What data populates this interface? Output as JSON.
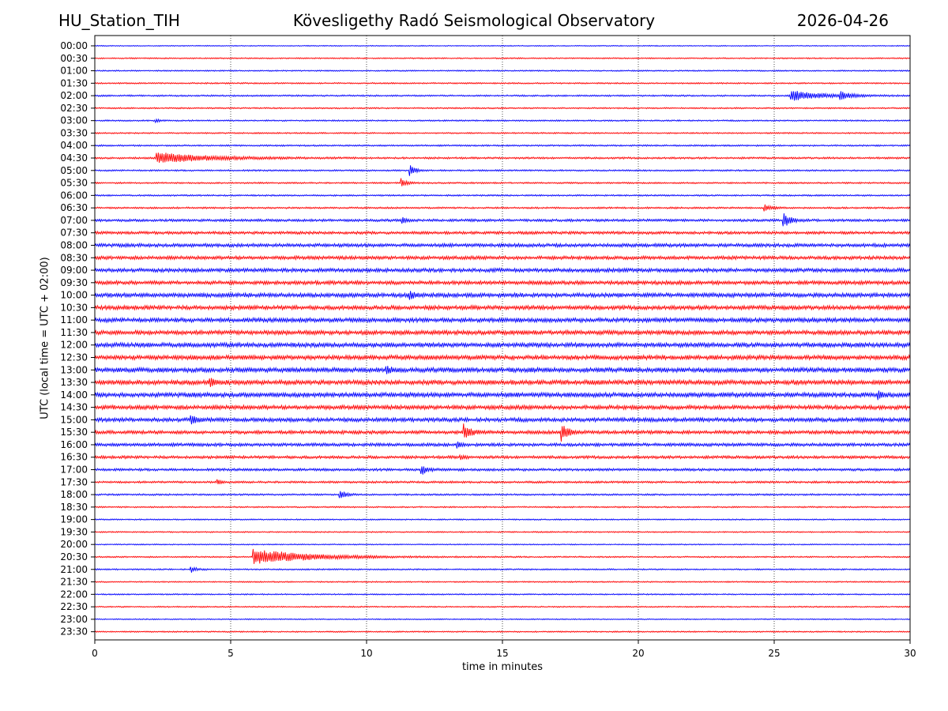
{
  "header": {
    "station": "HU_Station_TIH",
    "title": "Kövesligethy Radó Seismological Observatory",
    "date": "2026-04-26"
  },
  "chart_data": {
    "type": "line",
    "subtype": "helicorder",
    "title": "Kövesligethy Radó Seismological Observatory",
    "xlabel": "time in minutes",
    "ylabel": "UTC (local time = UTC + 02:00)",
    "xlim": [
      0,
      30
    ],
    "x_ticks": [
      "0",
      "5",
      "10",
      "15",
      "20",
      "25",
      "30"
    ],
    "x_tick_values": [
      0,
      5,
      10,
      15,
      20,
      25,
      30
    ],
    "vertical_gridlines_at": [
      5,
      10,
      15,
      20,
      25
    ],
    "series_colors": [
      "#0000ff",
      "#ff0000"
    ],
    "rows": [
      {
        "label": "00:00",
        "noise": 0.6,
        "events": []
      },
      {
        "label": "00:30",
        "noise": 0.8,
        "events": []
      },
      {
        "label": "01:00",
        "noise": 0.8,
        "events": []
      },
      {
        "label": "01:30",
        "noise": 0.9,
        "events": []
      },
      {
        "label": "02:00",
        "noise": 1.0,
        "events": [
          {
            "t": 25.6,
            "amp": 7,
            "dur": 2.2
          },
          {
            "t": 27.4,
            "amp": 6,
            "dur": 0.6
          }
        ]
      },
      {
        "label": "02:30",
        "noise": 0.9,
        "events": []
      },
      {
        "label": "03:00",
        "noise": 0.9,
        "events": [
          {
            "t": 2.2,
            "amp": 3,
            "dur": 0.2
          }
        ]
      },
      {
        "label": "03:30",
        "noise": 0.9,
        "events": []
      },
      {
        "label": "04:00",
        "noise": 1.0,
        "events": []
      },
      {
        "label": "04:30",
        "noise": 1.2,
        "events": [
          {
            "t": 2.25,
            "amp": 7,
            "dur": 3.8
          }
        ]
      },
      {
        "label": "05:00",
        "noise": 1.0,
        "events": [
          {
            "t": 11.55,
            "amp": 9,
            "dur": 0.3
          }
        ]
      },
      {
        "label": "05:30",
        "noise": 1.0,
        "events": [
          {
            "t": 11.25,
            "amp": 6,
            "dur": 0.3
          }
        ]
      },
      {
        "label": "06:00",
        "noise": 1.0,
        "events": []
      },
      {
        "label": "06:30",
        "noise": 1.1,
        "events": [
          {
            "t": 24.6,
            "amp": 5,
            "dur": 0.4
          }
        ]
      },
      {
        "label": "07:00",
        "noise": 1.6,
        "events": [
          {
            "t": 25.3,
            "amp": 11,
            "dur": 0.4
          },
          {
            "t": 11.3,
            "amp": 4,
            "dur": 0.2
          }
        ]
      },
      {
        "label": "07:30",
        "noise": 1.8,
        "events": []
      },
      {
        "label": "08:00",
        "noise": 2.2,
        "events": []
      },
      {
        "label": "08:30",
        "noise": 2.2,
        "events": []
      },
      {
        "label": "09:00",
        "noise": 2.4,
        "events": []
      },
      {
        "label": "09:30",
        "noise": 2.4,
        "events": []
      },
      {
        "label": "10:00",
        "noise": 2.6,
        "events": [
          {
            "t": 11.55,
            "amp": 6,
            "dur": 0.3
          }
        ]
      },
      {
        "label": "10:30",
        "noise": 2.6,
        "events": []
      },
      {
        "label": "11:00",
        "noise": 2.7,
        "events": []
      },
      {
        "label": "11:30",
        "noise": 2.7,
        "events": []
      },
      {
        "label": "12:00",
        "noise": 2.8,
        "events": []
      },
      {
        "label": "12:30",
        "noise": 2.8,
        "events": []
      },
      {
        "label": "13:00",
        "noise": 2.9,
        "events": [
          {
            "t": 10.7,
            "amp": 5,
            "dur": 0.3
          }
        ]
      },
      {
        "label": "13:30",
        "noise": 2.9,
        "events": [
          {
            "t": 4.2,
            "amp": 6,
            "dur": 0.3
          }
        ]
      },
      {
        "label": "14:00",
        "noise": 2.9,
        "events": [
          {
            "t": 28.8,
            "amp": 6,
            "dur": 0.3
          }
        ]
      },
      {
        "label": "14:30",
        "noise": 2.6,
        "events": []
      },
      {
        "label": "15:00",
        "noise": 2.5,
        "events": [
          {
            "t": 3.5,
            "amp": 8,
            "dur": 0.3
          }
        ]
      },
      {
        "label": "15:30",
        "noise": 2.2,
        "events": [
          {
            "t": 13.55,
            "amp": 12,
            "dur": 0.4
          },
          {
            "t": 17.15,
            "amp": 12,
            "dur": 0.4
          }
        ]
      },
      {
        "label": "16:00",
        "noise": 2.0,
        "events": [
          {
            "t": 13.3,
            "amp": 4,
            "dur": 0.2
          }
        ]
      },
      {
        "label": "16:30",
        "noise": 1.8,
        "events": [
          {
            "t": 13.4,
            "amp": 4,
            "dur": 0.2
          }
        ]
      },
      {
        "label": "17:00",
        "noise": 1.6,
        "events": [
          {
            "t": 12.0,
            "amp": 7,
            "dur": 0.3
          }
        ]
      },
      {
        "label": "17:30",
        "noise": 1.3,
        "events": [
          {
            "t": 4.5,
            "amp": 3,
            "dur": 0.2
          }
        ]
      },
      {
        "label": "18:00",
        "noise": 1.1,
        "events": [
          {
            "t": 9.0,
            "amp": 7,
            "dur": 0.3
          }
        ]
      },
      {
        "label": "18:30",
        "noise": 0.9,
        "events": []
      },
      {
        "label": "19:00",
        "noise": 0.8,
        "events": []
      },
      {
        "label": "19:30",
        "noise": 0.8,
        "events": []
      },
      {
        "label": "20:00",
        "noise": 0.7,
        "events": []
      },
      {
        "label": "20:30",
        "noise": 0.9,
        "events": [
          {
            "t": 5.8,
            "amp": 10,
            "dur": 4.2
          }
        ]
      },
      {
        "label": "21:00",
        "noise": 0.9,
        "events": [
          {
            "t": 3.5,
            "amp": 5,
            "dur": 0.3
          }
        ]
      },
      {
        "label": "21:30",
        "noise": 0.8,
        "events": []
      },
      {
        "label": "22:00",
        "noise": 0.8,
        "events": []
      },
      {
        "label": "22:30",
        "noise": 0.8,
        "events": []
      },
      {
        "label": "23:00",
        "noise": 0.7,
        "events": []
      },
      {
        "label": "23:30",
        "noise": 0.8,
        "events": []
      }
    ]
  }
}
